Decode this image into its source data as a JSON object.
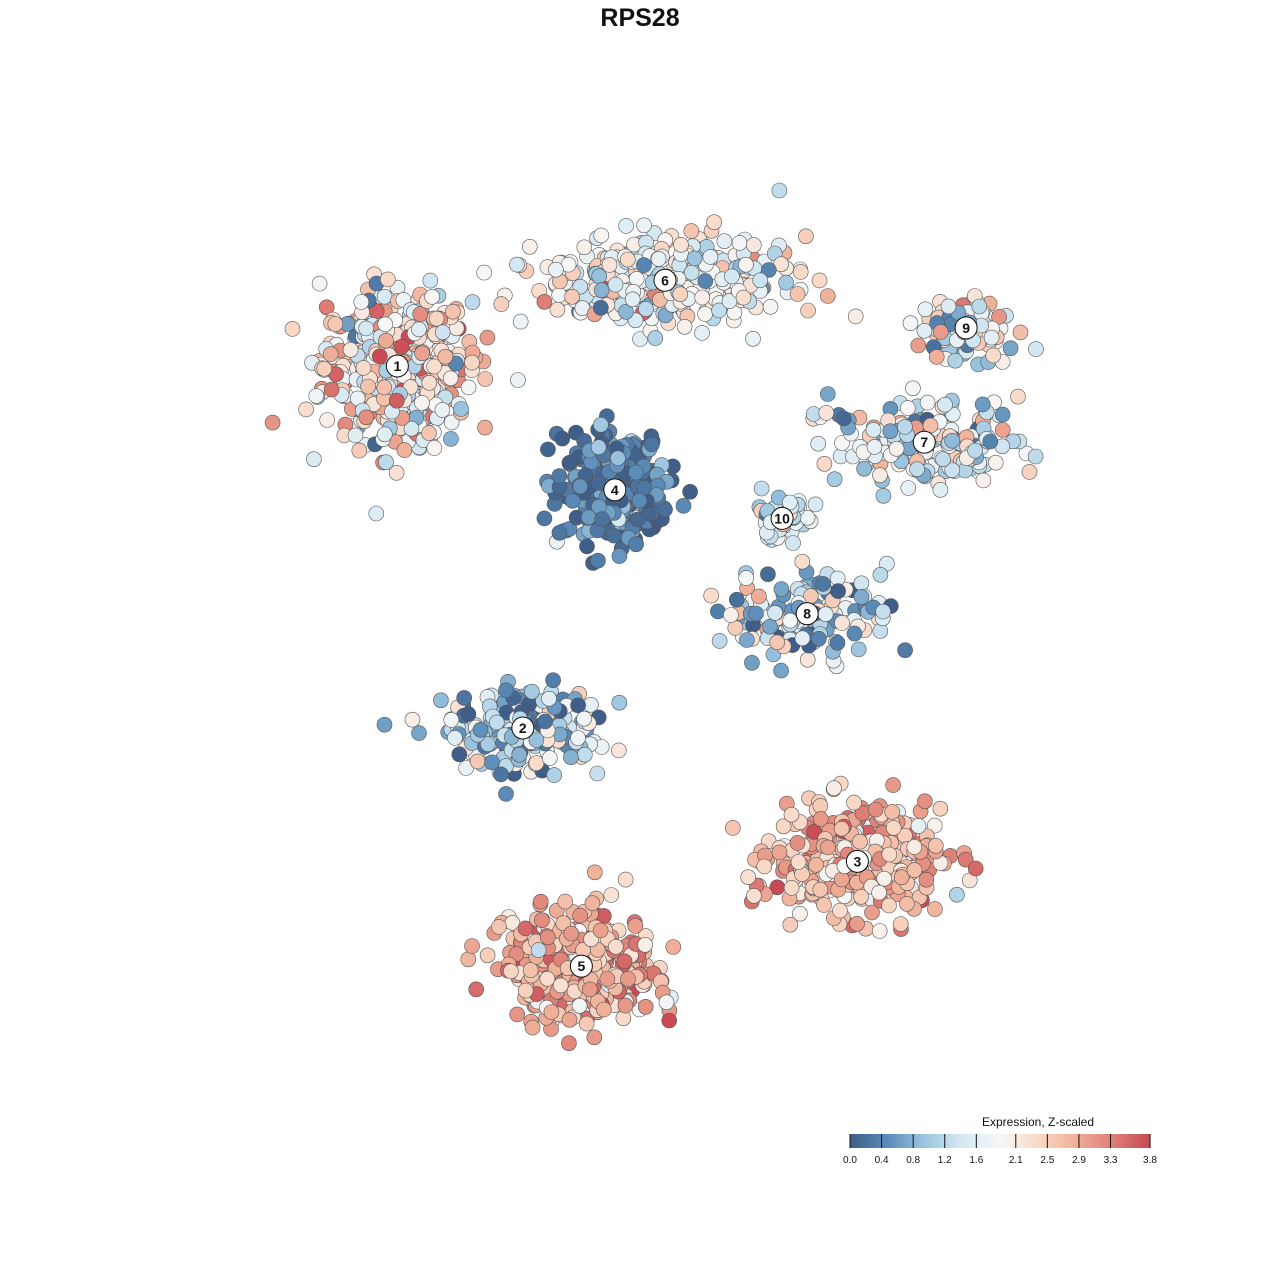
{
  "chart_data": {
    "type": "scatter",
    "title": "RPS28",
    "xlabel": "",
    "ylabel": "",
    "grid": false,
    "axes_visible": false,
    "legend": {
      "title": "Expression, Z-scaled",
      "placement": "bottom-right",
      "ticks": [
        "0.0",
        "0.4",
        "0.8",
        "1.2",
        "1.6",
        "2.1",
        "2.5",
        "2.9",
        "3.3",
        "3.8"
      ],
      "range": [
        0.0,
        3.8
      ],
      "colors": [
        "#3f5f8a",
        "#5a8bb8",
        "#9cc6e0",
        "#d6e9f3",
        "#f7f7f7",
        "#f9d9c7",
        "#f0b199",
        "#de7f76",
        "#c94a55"
      ]
    },
    "clusters": [
      {
        "label": "1",
        "center": [
          -32,
          26
        ],
        "spread": [
          8,
          7
        ],
        "n": 520,
        "mean": 2.1,
        "sd": 0.7
      },
      {
        "label": "2",
        "center": [
          -17,
          -12
        ],
        "spread": [
          8,
          4
        ],
        "n": 230,
        "mean": 1.0,
        "sd": 0.7
      },
      {
        "label": "3",
        "center": [
          23,
          -26
        ],
        "spread": [
          9,
          5
        ],
        "n": 400,
        "mean": 2.6,
        "sd": 0.5
      },
      {
        "label": "4",
        "center": [
          -6,
          13
        ],
        "spread": [
          6,
          5
        ],
        "n": 300,
        "mean": 0.3,
        "sd": 0.4
      },
      {
        "label": "5",
        "center": [
          -10,
          -37
        ],
        "spread": [
          8,
          5
        ],
        "n": 430,
        "mean": 2.8,
        "sd": 0.5
      },
      {
        "label": "6",
        "center": [
          0,
          35
        ],
        "spread": [
          13,
          4
        ],
        "n": 400,
        "mean": 1.8,
        "sd": 0.6
      },
      {
        "label": "7",
        "center": [
          31,
          18
        ],
        "spread": [
          10,
          4
        ],
        "n": 180,
        "mean": 1.5,
        "sd": 0.7
      },
      {
        "label": "8",
        "center": [
          17,
          0
        ],
        "spread": [
          9,
          4
        ],
        "n": 150,
        "mean": 1.2,
        "sd": 0.8
      },
      {
        "label": "9",
        "center": [
          36,
          30
        ],
        "spread": [
          5,
          3
        ],
        "n": 90,
        "mean": 1.6,
        "sd": 0.8
      },
      {
        "label": "10",
        "center": [
          14,
          10
        ],
        "spread": [
          3,
          2
        ],
        "n": 60,
        "mean": 1.4,
        "sd": 0.5
      }
    ],
    "xlim": [
      -55,
      55
    ],
    "ylim": [
      -50,
      45
    ]
  }
}
